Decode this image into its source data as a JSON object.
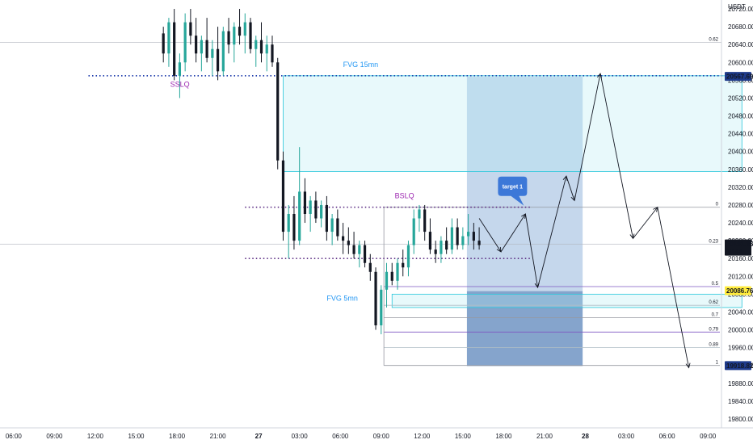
{
  "chart_data": {
    "type": "candlestick",
    "currency": "USDT",
    "ylim": [
      19780,
      20740
    ],
    "y_ticks": [
      19800,
      19840,
      19880,
      19920,
      19960,
      20000,
      20040,
      20080,
      20120,
      20160,
      20200,
      20240,
      20280,
      20320,
      20360,
      20400,
      20440,
      20480,
      20520,
      20560,
      20600,
      20640,
      20680,
      20720
    ],
    "x_ticks": [
      "06:00",
      "09:00",
      "12:00",
      "15:00",
      "18:00",
      "21:00",
      "27",
      "03:00",
      "06:00",
      "09:00",
      "12:00",
      "15:00",
      "18:00",
      "21:00",
      "28",
      "03:00",
      "06:00",
      "09:00"
    ],
    "x_range_hours": [
      -1,
      52
    ],
    "candles": [
      [
        11.0,
        20665,
        20680,
        20600,
        20620
      ],
      [
        11.4,
        20620,
        20700,
        20590,
        20690
      ],
      [
        11.8,
        20690,
        20720,
        20560,
        20570
      ],
      [
        12.2,
        20570,
        20620,
        20520,
        20600
      ],
      [
        12.6,
        20600,
        20710,
        20580,
        20690
      ],
      [
        13.0,
        20690,
        20720,
        20640,
        20660
      ],
      [
        13.4,
        20660,
        20700,
        20600,
        20620
      ],
      [
        13.8,
        20620,
        20660,
        20580,
        20650
      ],
      [
        14.2,
        20650,
        20700,
        20600,
        20610
      ],
      [
        14.6,
        20610,
        20650,
        20570,
        20630
      ],
      [
        15.0,
        20630,
        20680,
        20560,
        20580
      ],
      [
        15.4,
        20580,
        20680,
        20570,
        20670
      ],
      [
        15.8,
        20670,
        20700,
        20620,
        20640
      ],
      [
        16.2,
        20640,
        20690,
        20600,
        20680
      ],
      [
        16.6,
        20680,
        20720,
        20640,
        20660
      ],
      [
        17.0,
        20660,
        20710,
        20620,
        20690
      ],
      [
        17.4,
        20690,
        20700,
        20620,
        20630
      ],
      [
        17.8,
        20630,
        20660,
        20590,
        20650
      ],
      [
        18.2,
        20650,
        20690,
        20600,
        20620
      ],
      [
        18.6,
        20620,
        20660,
        20580,
        20640
      ],
      [
        19.0,
        20640,
        20660,
        20590,
        20600
      ],
      [
        19.4,
        20600,
        20610,
        20360,
        20380
      ],
      [
        19.8,
        20380,
        20400,
        20200,
        20220
      ],
      [
        20.2,
        20220,
        20280,
        20160,
        20260
      ],
      [
        20.6,
        20260,
        20300,
        20180,
        20200
      ],
      [
        21.0,
        20200,
        20410,
        20190,
        20310
      ],
      [
        21.4,
        20310,
        20340,
        20240,
        20260
      ],
      [
        21.8,
        20260,
        20300,
        20220,
        20290
      ],
      [
        22.2,
        20290,
        20310,
        20240,
        20250
      ],
      [
        22.6,
        20250,
        20290,
        20230,
        20280
      ],
      [
        23.0,
        20280,
        20300,
        20200,
        20220
      ],
      [
        23.4,
        20220,
        20260,
        20190,
        20250
      ],
      [
        23.8,
        20250,
        20270,
        20200,
        20210
      ],
      [
        24.2,
        20210,
        20240,
        20170,
        20200
      ],
      [
        24.6,
        20200,
        20230,
        20170,
        20190
      ],
      [
        25.0,
        20190,
        20220,
        20160,
        20170
      ],
      [
        25.4,
        20170,
        20200,
        20140,
        20190
      ],
      [
        25.8,
        20190,
        20200,
        20140,
        20150
      ],
      [
        26.2,
        20150,
        20170,
        20110,
        20130
      ],
      [
        26.6,
        20130,
        20140,
        20000,
        20010
      ],
      [
        27.0,
        20010,
        20100,
        19990,
        20090
      ],
      [
        27.4,
        20090,
        20150,
        20050,
        20130
      ],
      [
        27.8,
        20130,
        20150,
        20100,
        20110
      ],
      [
        28.2,
        20110,
        20160,
        20090,
        20150
      ],
      [
        28.6,
        20150,
        20180,
        20120,
        20140
      ],
      [
        29.0,
        20140,
        20200,
        20120,
        20190
      ],
      [
        29.4,
        20190,
        20270,
        20170,
        20250
      ],
      [
        29.8,
        20250,
        20280,
        20220,
        20270
      ],
      [
        30.2,
        20270,
        20280,
        20200,
        20220
      ],
      [
        30.6,
        20220,
        20250,
        20170,
        20180
      ],
      [
        31.0,
        20180,
        20200,
        20150,
        20170
      ],
      [
        31.4,
        20170,
        20210,
        20150,
        20200
      ],
      [
        31.8,
        20200,
        20230,
        20170,
        20180
      ],
      [
        32.2,
        20180,
        20250,
        20170,
        20230
      ],
      [
        32.6,
        20230,
        20250,
        20180,
        20190
      ],
      [
        33.0,
        20190,
        20230,
        20180,
        20210
      ],
      [
        33.4,
        20210,
        20260,
        20190,
        20220
      ],
      [
        33.8,
        20220,
        20240,
        20180,
        20200
      ],
      [
        34.2,
        20200,
        20230,
        20180,
        20190
      ]
    ],
    "projection_path": [
      [
        34.2,
        20250
      ],
      [
        35.8,
        20175
      ],
      [
        37.6,
        20260
      ],
      [
        38.5,
        20095
      ],
      [
        40.6,
        20345
      ],
      [
        41.2,
        20290
      ],
      [
        43.1,
        20575
      ],
      [
        45.5,
        20205
      ],
      [
        47.3,
        20275
      ],
      [
        49.6,
        19915
      ]
    ],
    "fvg_zones": [
      {
        "label": "FVG 15mn",
        "x_from": 19.8,
        "x_to": 53.5,
        "y_top": 20570,
        "y_bottom": 20355,
        "color": "#b2ebf2"
      },
      {
        "label": "FVG 5mn",
        "x_from": 27.8,
        "x_to": 53.5,
        "y_top": 20080,
        "y_bottom": 20050,
        "color": "#b2ebf2"
      }
    ],
    "position_box": {
      "x_from": 33.3,
      "x_to": 41.8,
      "y_top": 20567.69,
      "y_mid": 20086.76,
      "y_bottom": 19918.82
    },
    "liquidity_lines": [
      {
        "label": "SSLQ",
        "x_from": 5.5,
        "x_to": 20.0,
        "y": 20570
      },
      {
        "label": "BSLQ",
        "x_from": 17.0,
        "x_to": 38.0,
        "y": 20275
      },
      {
        "label": "",
        "x_from": 17.0,
        "x_to": 38.0,
        "y": 20160
      }
    ],
    "horizontal_lines": [
      {
        "label": "0.62",
        "y": 20645
      },
      {
        "label": "0.23",
        "y": 20192
      }
    ],
    "fib_levels": [
      {
        "label": "0",
        "y": 20275,
        "color": "#9598a1"
      },
      {
        "label": "0.5",
        "y": 20097,
        "color": "#7e57c2"
      },
      {
        "label": "0.62",
        "y": 20055,
        "color": "#b0bec5"
      },
      {
        "label": "0.7",
        "y": 20027,
        "color": "#9598a1"
      },
      {
        "label": "0.79",
        "y": 19995,
        "color": "#7e57c2"
      },
      {
        "label": "0.89",
        "y": 19960,
        "color": "#b0bec5"
      },
      {
        "label": "1",
        "y": 19920,
        "color": "#9598a1"
      }
    ],
    "price_badges": [
      {
        "value": "20567.69",
        "y": 20567.69,
        "bg": "#1e3a8a",
        "fg": "#ffffff",
        "sub": ""
      },
      {
        "value": "20191.85",
        "y": 20191.85,
        "bg": "#131722",
        "fg": "#ffffff",
        "sub": "10:44"
      },
      {
        "value": "20086.76",
        "y": 20086.76,
        "bg": "#ffeb3b",
        "fg": "#131722",
        "sub": ""
      },
      {
        "value": "19918.82",
        "y": 19918.82,
        "bg": "#1e3a8a",
        "fg": "#ffffff",
        "sub": ""
      }
    ],
    "callout": {
      "label": "target 1",
      "x": 37.6,
      "y": 20275
    },
    "annotations": [
      {
        "text": "FVG 15mn",
        "x": 24.2,
        "y": 20590,
        "color": "#2196f3"
      },
      {
        "text": "SSLQ",
        "x": 11.5,
        "y": 20545,
        "color": "#9c27b0"
      },
      {
        "text": "BSLQ",
        "x": 28.0,
        "y": 20295,
        "color": "#9c27b0"
      },
      {
        "text": "FVG 5mn",
        "x": 23.0,
        "y": 20065,
        "color": "#2196f3"
      }
    ],
    "colors": {
      "up": "#26a69a",
      "down": "#131722",
      "box_top": "#bfd3ea",
      "box_bottom": "#7e9fc9",
      "fvg_border": "#26c6da",
      "dotted": "#1e40af",
      "liq_dotted": "#5b2c83",
      "projection": "#131722"
    }
  }
}
